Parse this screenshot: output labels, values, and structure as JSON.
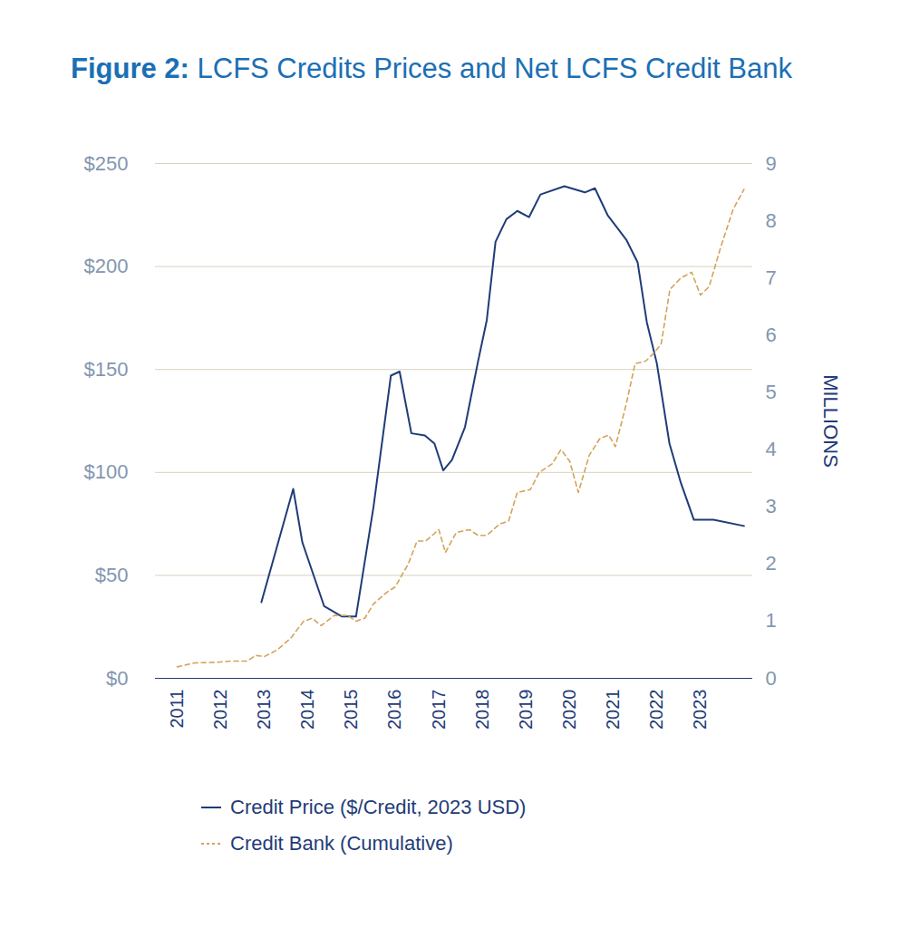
{
  "chart_data": {
    "type": "line",
    "title": "Figure 2: LCFS Credits Prices and Net LCFS Credit Bank",
    "xlim": [
      2010.5,
      2024.2
    ],
    "xticks": [
      2011,
      2012,
      2013,
      2014,
      2015,
      2016,
      2017,
      2018,
      2019,
      2020,
      2021,
      2022,
      2023
    ],
    "ylim": [
      0,
      250
    ],
    "yticks": [
      {
        "value": 0,
        "label": "$0"
      },
      {
        "value": 50,
        "label": "$50"
      },
      {
        "value": 100,
        "label": "$100"
      },
      {
        "value": 150,
        "label": "$150"
      },
      {
        "value": 200,
        "label": "$200"
      },
      {
        "value": 250,
        "label": "$250"
      }
    ],
    "y2lim": [
      0,
      9
    ],
    "y2ticks": [
      0,
      1,
      2,
      3,
      4,
      5,
      6,
      7,
      8,
      9
    ],
    "y2label": "MILLIONS",
    "grid": true,
    "legend": "bottom",
    "series": [
      {
        "name": "Credit Price ($/Credit, 2023 USD)",
        "color": "#1f3c78",
        "line_style": "solid",
        "x": [
          2012.93,
          2013.66,
          2013.87,
          2014.37,
          2014.78,
          2015.1,
          2015.5,
          2015.9,
          2016.1,
          2016.37,
          2016.68,
          2016.9,
          2017.1,
          2017.3,
          2017.6,
          2017.9,
          2018.1,
          2018.3,
          2018.55,
          2018.8,
          2019.07,
          2019.33,
          2019.88,
          2020.35,
          2020.58,
          2020.87,
          2021.3,
          2021.56,
          2021.77,
          2022.0,
          2022.29,
          2022.55,
          2022.85,
          2023.1,
          2023.3,
          2024.0
        ],
        "values": [
          37,
          92,
          66,
          35,
          30,
          30,
          83,
          147,
          149,
          119,
          118,
          114,
          101,
          106,
          122,
          154,
          174,
          212,
          223,
          227,
          224,
          235,
          239,
          236,
          238,
          225,
          213,
          202,
          173,
          153,
          114,
          95,
          77,
          77,
          77,
          74
        ]
      },
      {
        "name": "Credit Bank (Cumulative)",
        "color": "#d4a35a",
        "line_style": "dashed",
        "axis": "y2",
        "x": [
          2011.0,
          2011.4,
          2011.9,
          2012.2,
          2012.6,
          2012.8,
          2013.0,
          2013.3,
          2013.6,
          2013.9,
          2014.1,
          2014.3,
          2014.6,
          2014.9,
          2015.1,
          2015.3,
          2015.5,
          2015.8,
          2016.0,
          2016.3,
          2016.5,
          2016.7,
          2017.0,
          2017.15,
          2017.4,
          2017.7,
          2017.9,
          2018.1,
          2018.4,
          2018.6,
          2018.8,
          2019.1,
          2019.3,
          2019.6,
          2019.8,
          2020.0,
          2020.2,
          2020.45,
          2020.7,
          2020.9,
          2021.05,
          2021.3,
          2021.5,
          2021.75,
          2021.95,
          2022.1,
          2022.3,
          2022.55,
          2022.8,
          2023.0,
          2023.2,
          2023.45,
          2023.75,
          2024.0
        ],
        "values": [
          0.2,
          0.27,
          0.28,
          0.3,
          0.3,
          0.4,
          0.38,
          0.5,
          0.7,
          1.0,
          1.05,
          0.92,
          1.1,
          1.1,
          1.0,
          1.05,
          1.3,
          1.5,
          1.6,
          2.0,
          2.4,
          2.4,
          2.6,
          2.2,
          2.55,
          2.6,
          2.5,
          2.5,
          2.7,
          2.75,
          3.25,
          3.3,
          3.6,
          3.75,
          4.0,
          3.8,
          3.25,
          3.9,
          4.2,
          4.25,
          4.05,
          4.8,
          5.5,
          5.55,
          5.7,
          5.85,
          6.8,
          7.0,
          7.1,
          6.7,
          6.85,
          7.5,
          8.2,
          8.55
        ]
      }
    ]
  }
}
